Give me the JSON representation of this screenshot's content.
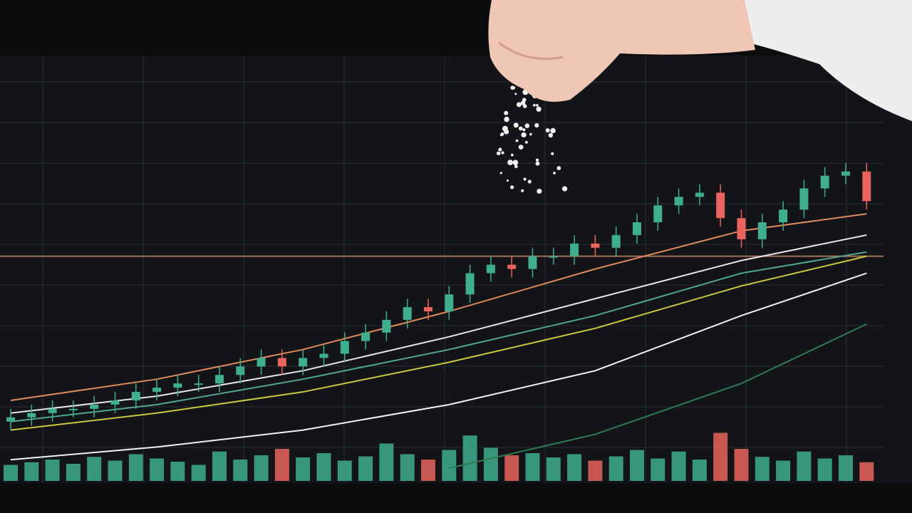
{
  "chart_data": {
    "type": "candlestick",
    "up_color": "#3fae8c",
    "down_color": "#e8645c",
    "ylim": [
      0,
      100
    ],
    "open": [
      14,
      15,
      16,
      17,
      17,
      18,
      19,
      21,
      22,
      23,
      23,
      25,
      27,
      29,
      27,
      29,
      30,
      33,
      35,
      38,
      41,
      40,
      44,
      49,
      51,
      50,
      53,
      53,
      56,
      55,
      58,
      61,
      65,
      67,
      68,
      62,
      57,
      61,
      64,
      69,
      72,
      73
    ],
    "high": [
      17,
      18,
      19,
      19,
      20,
      21,
      23,
      24,
      25,
      25,
      27,
      29,
      31,
      31,
      31,
      32,
      35,
      37,
      40,
      43,
      43,
      46,
      51,
      53,
      53,
      55,
      55,
      58,
      58,
      60,
      63,
      67,
      69,
      70,
      70,
      64,
      63,
      66,
      71,
      74,
      75,
      75
    ],
    "low": [
      12,
      13,
      14,
      15,
      15,
      16,
      17,
      19,
      20,
      21,
      21,
      23,
      25,
      25,
      25,
      27,
      28,
      31,
      33,
      36,
      38,
      38,
      42,
      47,
      48,
      48,
      51,
      51,
      53,
      53,
      56,
      59,
      63,
      65,
      60,
      55,
      55,
      59,
      62,
      67,
      70,
      64
    ],
    "close": [
      15,
      16,
      17,
      17,
      18,
      19,
      21,
      22,
      23,
      23,
      25,
      27,
      29,
      27,
      29,
      30,
      33,
      35,
      38,
      41,
      40,
      44,
      49,
      51,
      50,
      53,
      53,
      56,
      55,
      58,
      61,
      65,
      67,
      68,
      62,
      57,
      61,
      64,
      69,
      72,
      73,
      66
    ],
    "reference_line": {
      "value": 53,
      "color": "#c9866a"
    },
    "lines": {
      "x": [
        0,
        7,
        14,
        21,
        28,
        35,
        41
      ],
      "series": [
        {
          "color": "#e08a5c",
          "values": [
            19,
            24,
            31,
            40,
            50,
            59,
            63
          ]
        },
        {
          "color": "#e6e6e6",
          "values": [
            16,
            20,
            26,
            34,
            43,
            52,
            58
          ]
        },
        {
          "color": "#4fa88f",
          "values": [
            14,
            18,
            24,
            31,
            39,
            49,
            54
          ]
        },
        {
          "color": "#c9c940",
          "values": [
            12,
            16,
            21,
            28,
            36,
            46,
            53
          ]
        },
        {
          "color": "#f2f2f2",
          "values": [
            5,
            8,
            12,
            18,
            26,
            39,
            49
          ]
        },
        {
          "color": "#2f7a55",
          "values": [
            null,
            null,
            null,
            3,
            11,
            23,
            37
          ]
        }
      ]
    },
    "volume": {
      "ylim": [
        0,
        100
      ],
      "values": [
        30,
        35,
        40,
        32,
        45,
        38,
        50,
        42,
        36,
        30,
        55,
        40,
        48,
        60,
        44,
        52,
        38,
        46,
        70,
        50,
        40,
        58,
        85,
        62,
        48,
        52,
        44,
        50,
        38,
        46,
        58,
        42,
        55,
        40,
        90,
        60,
        45,
        38,
        55,
        42,
        48,
        35
      ]
    },
    "grid": true
  }
}
